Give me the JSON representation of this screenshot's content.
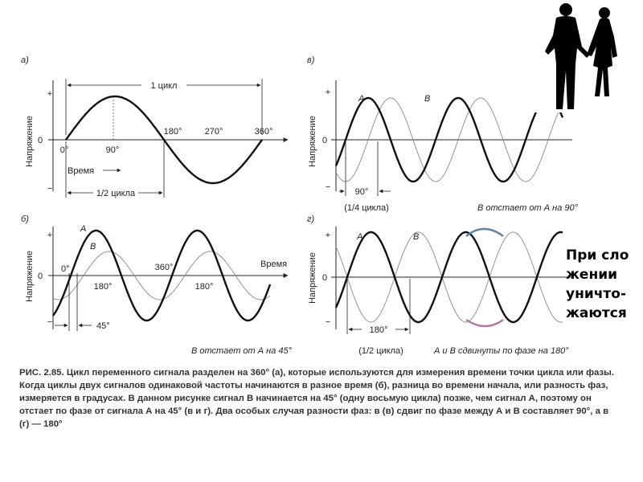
{
  "panels": {
    "a": {
      "letter": "а)",
      "cycle_label": "1 цикл",
      "ylabel": "Напряжение",
      "plus": "+",
      "minus": "−",
      "zero": "0",
      "angles": [
        "0°",
        "90°",
        "180°",
        "270°",
        "360°"
      ],
      "time_label": "Время",
      "half_cycle": "1/2 цикла"
    },
    "b": {
      "letter": "б)",
      "ylabel": "Напряжение",
      "plus": "+",
      "minus": "−",
      "zero": "0",
      "signal_a": "A",
      "signal_b": "B",
      "deg0": "0°",
      "deg360": "360°",
      "deg180_left": "180°",
      "deg180_right": "180°",
      "time_label": "Время",
      "shift": "45°",
      "caption": "В отстает от А на 45°"
    },
    "v": {
      "letter": "в)",
      "ylabel": "Напряжение",
      "plus": "+",
      "minus": "−",
      "zero": "0",
      "signal_a": "A",
      "signal_b": "B",
      "shift": "90°",
      "quarter": "(1/4 цикла)",
      "caption": "В отстает от А на 90°"
    },
    "g": {
      "letter": "г)",
      "ylabel": "Напряжение",
      "plus": "+",
      "minus": "−",
      "zero": "0",
      "signal_a": "A",
      "signal_b": "B",
      "shift": "180°",
      "half": "(1/2 цикла)",
      "caption": "А и В сдвинуты по фазе на 180°"
    }
  },
  "caption": {
    "title": "РИС. 2.85.",
    "text": "Цикл переменного сигнала разделен на 360° (а), которые используются для измерения времени точки цикла или фазы. Когда циклы двух сигналов одинаковой частоты начинаются в разное время (б), разница во времени начала, или разность фаз, измеряется в градусах. В данном рисунке сигнал В начинается на 45° (одну восьмую цикла) позже, чем сигнал А, поэтому он отстает по фазе от сигнала А на 45° (в и г). Два особых случая разности фаз: в (в) сдвиг по фазе между А и В составляет 90°, а в (г) — 180°"
  },
  "side_note": "При сло\nжении\nуничто-\nжаются",
  "colors": {
    "curve": "#111111",
    "curve_thin": "#888888",
    "arrow_top": "#5a7fa8",
    "arrow_bottom": "#b07aa0"
  }
}
